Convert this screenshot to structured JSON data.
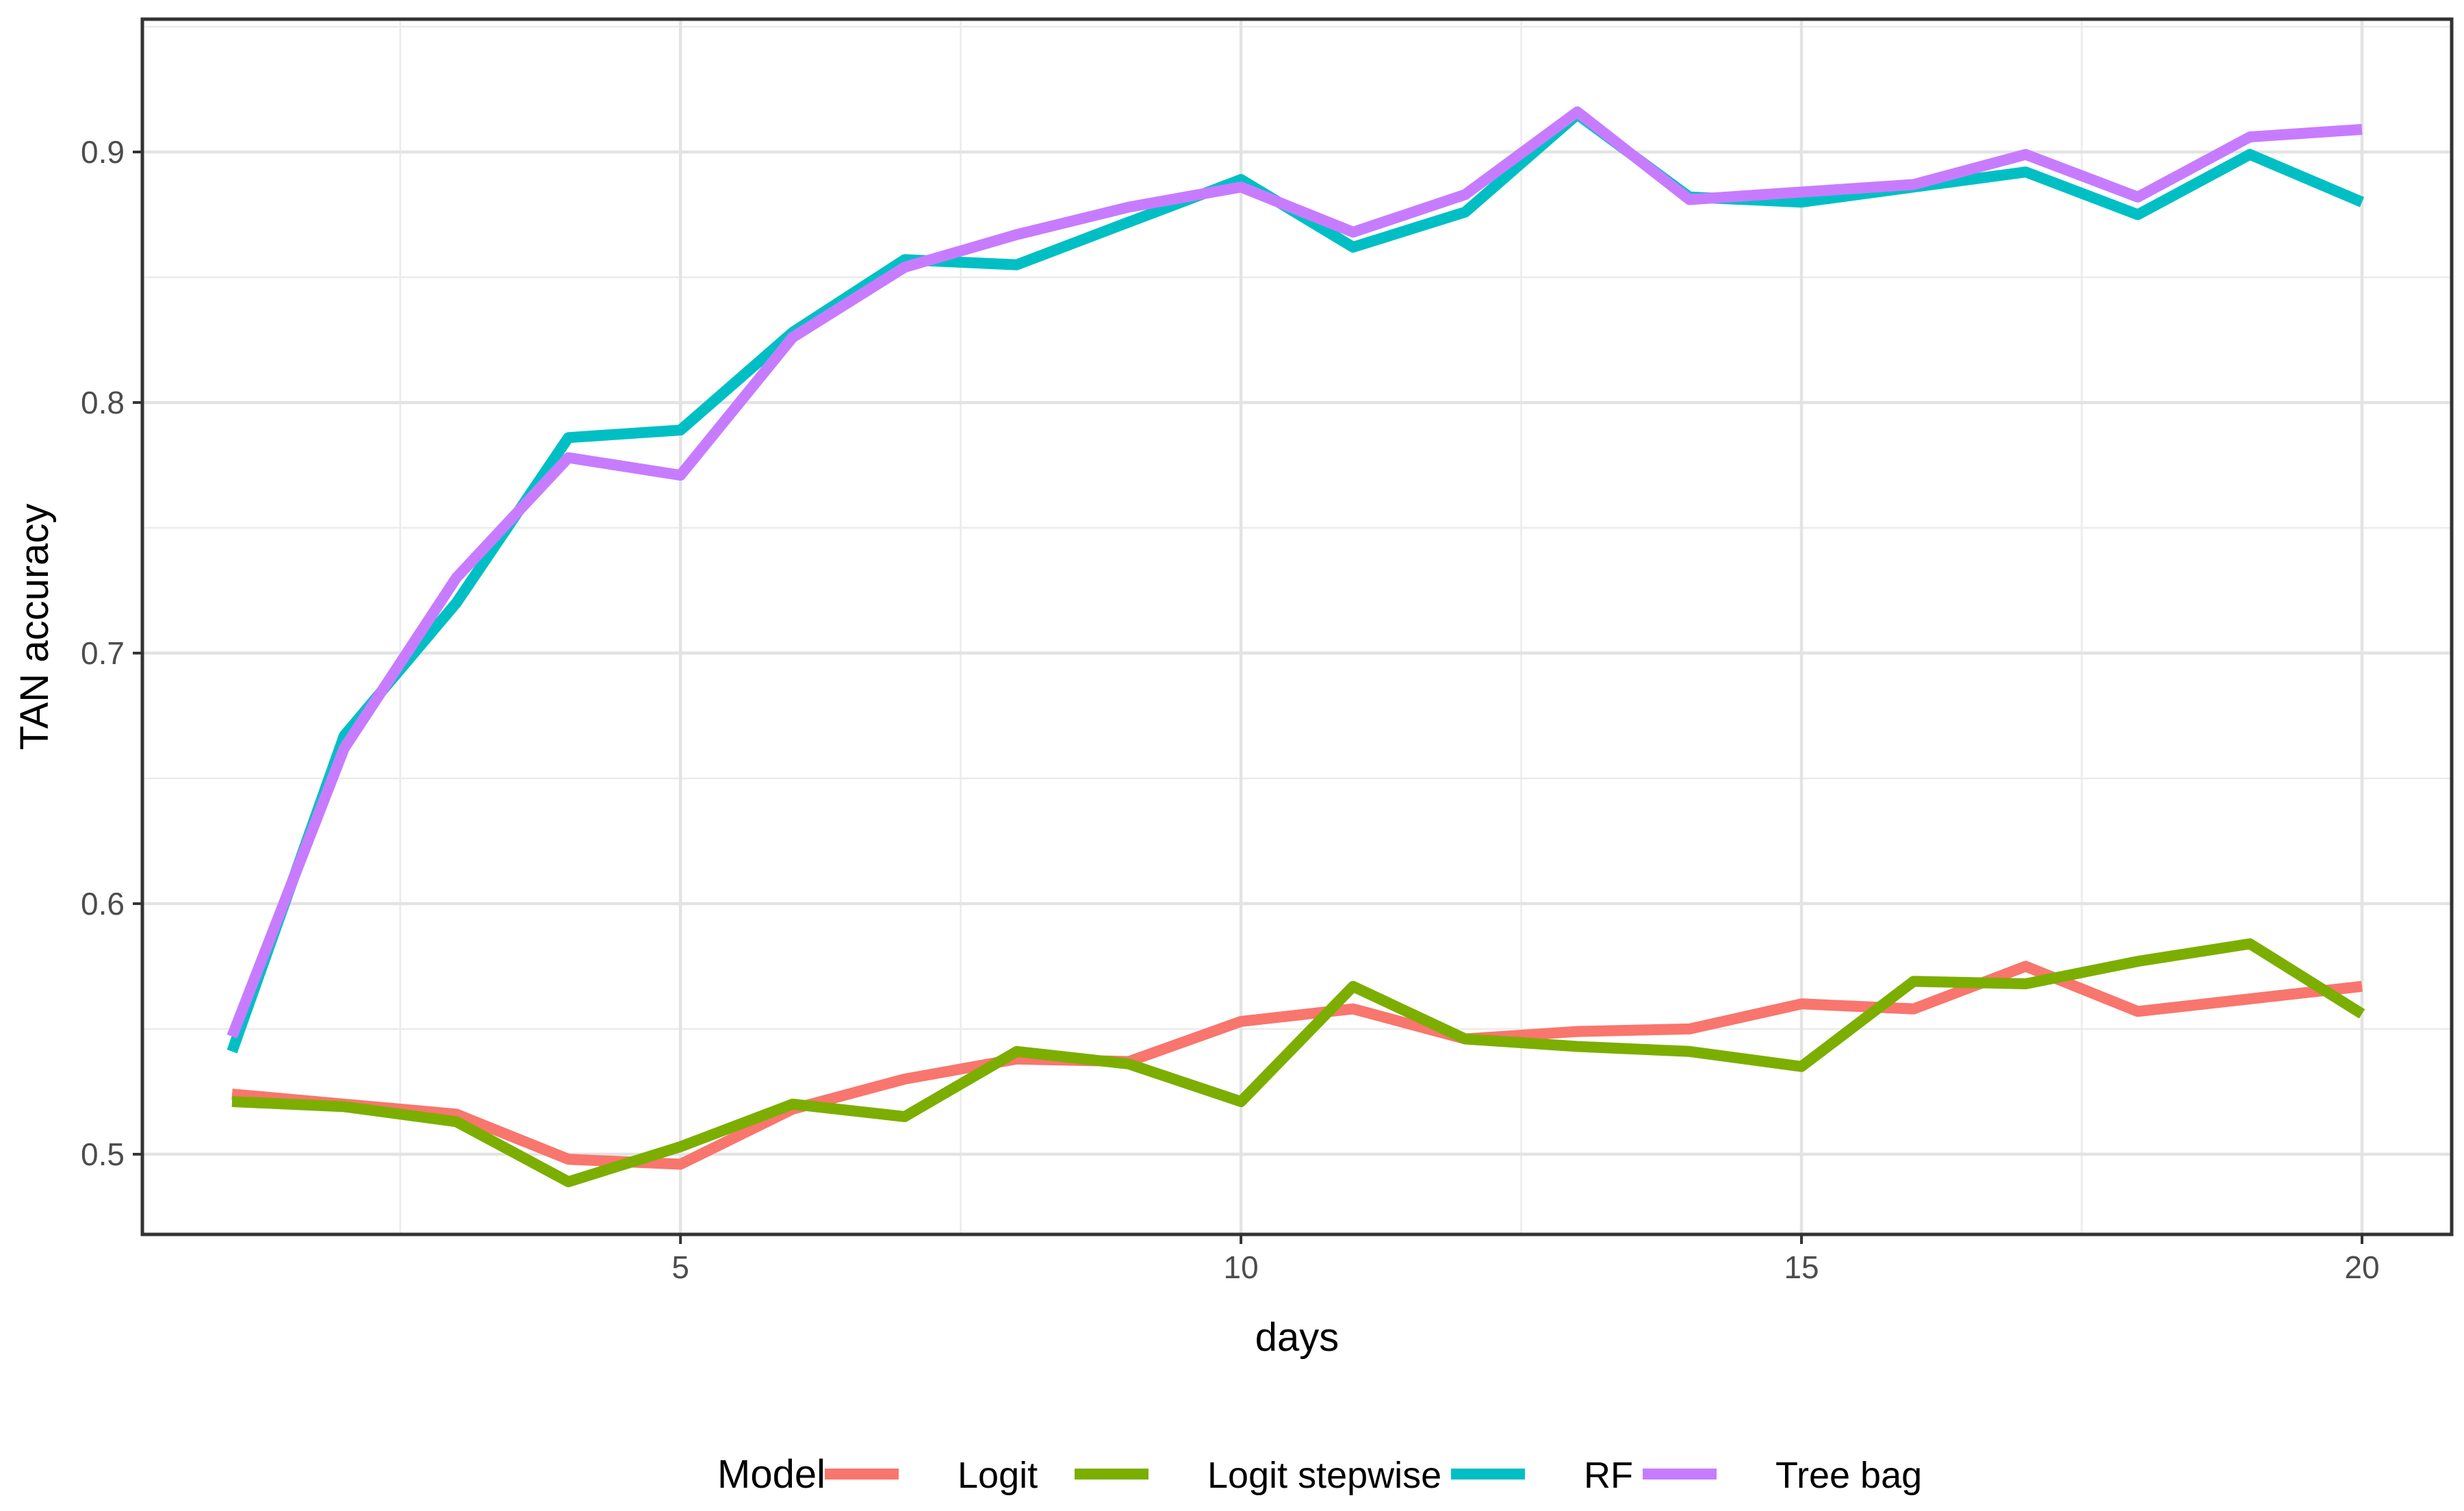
{
  "chart_data": {
    "type": "line",
    "xlabel": "days",
    "ylabel": "TAN accuracy",
    "xlim": [
      0.2,
      20.8
    ],
    "ylim": [
      0.468,
      0.953
    ],
    "x_ticks": [
      5,
      10,
      15,
      20
    ],
    "y_ticks": [
      0.5,
      0.6,
      0.7,
      0.8,
      0.9
    ],
    "x_tick_labels": [
      "5",
      "10",
      "15",
      "20"
    ],
    "y_tick_labels": [
      "0.5",
      "0.6",
      "0.7",
      "0.8",
      "0.9"
    ],
    "grid": true,
    "legend": {
      "title": "Model",
      "position": "bottom"
    },
    "x": [
      1,
      2,
      3,
      4,
      5,
      6,
      7,
      8,
      9,
      10,
      11,
      12,
      13,
      14,
      15,
      16,
      17,
      18,
      19,
      20
    ],
    "series": [
      {
        "name": "Logit",
        "color": "#F8766D",
        "values": [
          0.524,
          0.52,
          0.516,
          0.498,
          0.496,
          0.518,
          0.53,
          0.538,
          0.537,
          0.553,
          0.558,
          0.546,
          0.549,
          0.55,
          0.56,
          0.558,
          0.575,
          0.557,
          0.562,
          0.567
        ]
      },
      {
        "name": "Logit stepwise",
        "color": "#7CAE00",
        "values": [
          0.521,
          0.519,
          0.513,
          0.489,
          0.503,
          0.52,
          0.515,
          0.541,
          0.536,
          0.521,
          0.567,
          0.546,
          0.543,
          0.541,
          0.535,
          0.569,
          0.568,
          0.577,
          0.584,
          0.556
        ]
      },
      {
        "name": "RF",
        "color": "#00BFC4",
        "values": [
          0.541,
          0.667,
          0.72,
          0.786,
          0.789,
          0.828,
          0.857,
          0.855,
          0.872,
          0.889,
          0.862,
          0.876,
          0.915,
          0.882,
          0.88,
          0.886,
          0.892,
          0.875,
          0.899,
          0.88
        ]
      },
      {
        "name": "Tree bag",
        "color": "#C77CFF",
        "values": [
          0.547,
          0.662,
          0.73,
          0.778,
          0.771,
          0.826,
          0.854,
          0.867,
          0.878,
          0.886,
          0.868,
          0.883,
          0.916,
          0.881,
          0.884,
          0.887,
          0.899,
          0.882,
          0.906,
          0.909
        ]
      }
    ]
  }
}
